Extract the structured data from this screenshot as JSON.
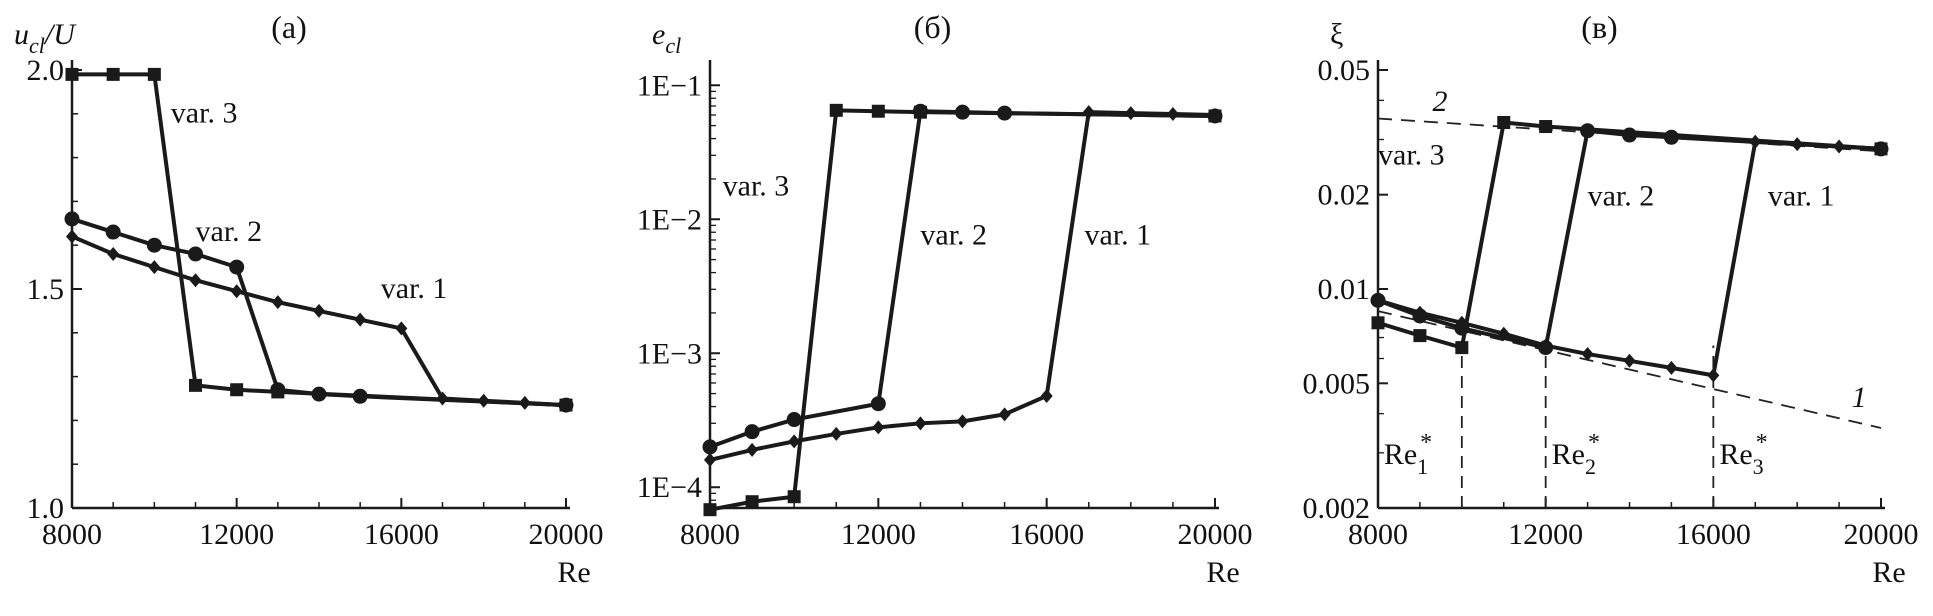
{
  "chart_data": [
    {
      "type": "line",
      "panel_label": "(а)",
      "ylabel": "u_cl/U",
      "ylabel_parts": {
        "main": "u",
        "sub": "cl",
        "rest": "/U"
      },
      "xlabel": "Re",
      "xlim": [
        8000,
        20000
      ],
      "ylim": [
        1.0,
        2.0
      ],
      "yscale": "linear",
      "xticks": [
        8000,
        12000,
        16000,
        20000
      ],
      "xtick_labels": [
        "8000",
        "12000",
        "16000",
        "20000"
      ],
      "yticks": [
        1.0,
        1.5,
        2.0
      ],
      "ytick_labels": [
        "1.0",
        "1.5",
        "2.0"
      ],
      "series": [
        {
          "name": "var. 1",
          "marker": "diamond",
          "x": [
            8000,
            9000,
            10000,
            11000,
            12000,
            13000,
            14000,
            15000,
            16000,
            17000,
            18000,
            19000,
            20000
          ],
          "y": [
            1.62,
            1.58,
            1.55,
            1.52,
            1.495,
            1.47,
            1.45,
            1.43,
            1.41,
            1.25,
            1.245,
            1.24,
            1.235
          ]
        },
        {
          "name": "var. 2",
          "marker": "circle",
          "x": [
            8000,
            9000,
            10000,
            11000,
            12000,
            13000,
            14000,
            15000,
            20000
          ],
          "y": [
            1.66,
            1.63,
            1.6,
            1.58,
            1.55,
            1.27,
            1.26,
            1.255,
            1.235
          ]
        },
        {
          "name": "var. 3",
          "marker": "square",
          "x": [
            8000,
            9000,
            10000,
            11000,
            12000,
            13000,
            20000
          ],
          "y": [
            1.99,
            1.99,
            1.99,
            1.28,
            1.27,
            1.265,
            1.235
          ]
        }
      ],
      "annotations": [
        {
          "text": "var. 3",
          "x": 10400,
          "y": 1.88
        },
        {
          "text": "var. 2",
          "x": 11000,
          "y": 1.61
        },
        {
          "text": "var. 1",
          "x": 15500,
          "y": 1.48
        }
      ]
    },
    {
      "type": "line",
      "panel_label": "(б)",
      "ylabel": "e_cl",
      "ylabel_parts": {
        "main": "e",
        "sub": "cl",
        "rest": ""
      },
      "xlabel": "Re",
      "xlim": [
        8000,
        20000
      ],
      "ylim": [
        7e-05,
        0.13
      ],
      "yscale": "log",
      "xticks": [
        8000,
        12000,
        16000,
        20000
      ],
      "xtick_labels": [
        "8000",
        "12000",
        "16000",
        "20000"
      ],
      "yticks": [
        0.0001,
        0.001,
        0.01,
        0.1
      ],
      "ytick_labels": [
        "1E−4",
        "1E−3",
        "1E−2",
        "1E−1"
      ],
      "series": [
        {
          "name": "var. 1",
          "marker": "diamond",
          "x": [
            8000,
            9000,
            10000,
            11000,
            12000,
            13000,
            14000,
            15000,
            16000,
            17000,
            18000,
            19000,
            20000
          ],
          "y": [
            0.00016,
            0.00019,
            0.00022,
            0.00025,
            0.00028,
            0.0003,
            0.00031,
            0.00035,
            0.00048,
            0.063,
            0.062,
            0.061,
            0.06
          ]
        },
        {
          "name": "var. 2",
          "marker": "circle",
          "x": [
            8000,
            9000,
            10000,
            12000,
            13000,
            14000,
            15000,
            20000
          ],
          "y": [
            0.0002,
            0.00026,
            0.00032,
            0.00042,
            0.064,
            0.063,
            0.062,
            0.059
          ]
        },
        {
          "name": "var. 3",
          "marker": "square",
          "x": [
            8000,
            9000,
            10000,
            11000,
            12000,
            13000,
            20000
          ],
          "y": [
            6.8e-05,
            7.8e-05,
            8.5e-05,
            0.065,
            0.064,
            0.063,
            0.059
          ]
        }
      ],
      "annotations": [
        {
          "text": "var. 3",
          "x": 8300,
          "y": 0.015
        },
        {
          "text": "var. 2",
          "x": 13000,
          "y": 0.0065
        },
        {
          "text": "var. 1",
          "x": 16900,
          "y": 0.0065
        }
      ]
    },
    {
      "type": "line",
      "panel_label": "(в)",
      "ylabel": "ξ",
      "xlabel": "Re",
      "xlim": [
        8000,
        20000
      ],
      "ylim": [
        0.002,
        0.05
      ],
      "yscale": "log",
      "xticks": [
        8000,
        12000,
        16000,
        20000
      ],
      "xtick_labels": [
        "8000",
        "12000",
        "16000",
        "20000"
      ],
      "yticks": [
        0.002,
        0.005,
        0.01,
        0.02,
        0.05
      ],
      "ytick_labels": [
        "0.002",
        "0.005",
        "0.01",
        "0.02",
        "0.05"
      ],
      "series": [
        {
          "name": "var. 1",
          "marker": "diamond",
          "x": [
            8000,
            9000,
            10000,
            11000,
            12000,
            13000,
            14000,
            15000,
            16000,
            17000,
            18000,
            19000,
            20000
          ],
          "y": [
            0.0092,
            0.0084,
            0.0078,
            0.0072,
            0.0066,
            0.0062,
            0.0059,
            0.0056,
            0.0053,
            0.0295,
            0.029,
            0.0285,
            0.028
          ]
        },
        {
          "name": "var. 2",
          "marker": "circle",
          "x": [
            8000,
            9000,
            10000,
            12000,
            13000,
            14000,
            15000,
            20000
          ],
          "y": [
            0.0092,
            0.0082,
            0.0075,
            0.0065,
            0.032,
            0.031,
            0.0305,
            0.028
          ]
        },
        {
          "name": "var. 3",
          "marker": "square",
          "x": [
            8000,
            9000,
            10000,
            11000,
            12000,
            20000
          ],
          "y": [
            0.0078,
            0.0071,
            0.0065,
            0.034,
            0.033,
            0.028
          ]
        }
      ],
      "reference_lines": [
        {
          "label": "1",
          "x": [
            8000,
            20000
          ],
          "y": [
            0.0085,
            0.0036
          ],
          "style": "dashed"
        },
        {
          "label": "2",
          "x": [
            8000,
            20000
          ],
          "y": [
            0.035,
            0.0275
          ],
          "style": "dashed"
        }
      ],
      "vertical_markers": [
        {
          "x": 10000,
          "label_main": "Re",
          "label_sub": "1",
          "label_sup": "*"
        },
        {
          "x": 12000,
          "label_main": "Re",
          "label_sub": "2",
          "label_sup": "*"
        },
        {
          "x": 16000,
          "label_main": "Re",
          "label_sub": "3",
          "label_sup": "*"
        }
      ],
      "annotations": [
        {
          "text": "var. 3",
          "x": 8000,
          "y": 0.025
        },
        {
          "text": "var. 2",
          "x": 13000,
          "y": 0.0185
        },
        {
          "text": "var. 1",
          "x": 17300,
          "y": 0.0185
        }
      ]
    }
  ]
}
